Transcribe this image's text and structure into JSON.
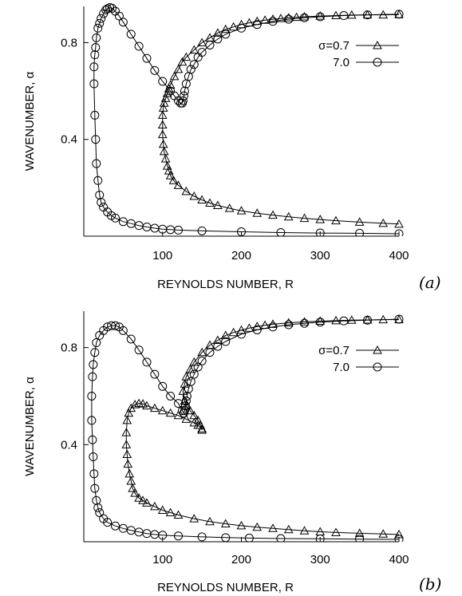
{
  "chart_data": [
    {
      "type": "line",
      "panel_label": "(a)",
      "xlabel": "REYNOLDS NUMBER, R",
      "ylabel": "WAVENUMBER, α",
      "xlim": [
        0,
        400
      ],
      "ylim": [
        0,
        0.95
      ],
      "xticks": [
        "100",
        "200",
        "300",
        "400"
      ],
      "yticks": [
        "0.4",
        "0.8"
      ],
      "legend_placement": "top-right",
      "series": [
        {
          "name": "σ=0.7",
          "marker": "triangle",
          "x": [
            400,
            380,
            350,
            320,
            300,
            280,
            260,
            240,
            220,
            200,
            185,
            170,
            160,
            150,
            140,
            130,
            120,
            114,
            110,
            108,
            106,
            104,
            102,
            101,
            100,
            100,
            100,
            101,
            102,
            104,
            106,
            108,
            110,
            115,
            120,
            125,
            130,
            140,
            150,
            160,
            170,
            180,
            190,
            200,
            210,
            220,
            230,
            240,
            250,
            260,
            270,
            280,
            300,
            320,
            340,
            360,
            380,
            400
          ],
          "y": [
            0.05,
            0.053,
            0.058,
            0.064,
            0.069,
            0.074,
            0.08,
            0.087,
            0.095,
            0.105,
            0.115,
            0.127,
            0.137,
            0.15,
            0.165,
            0.185,
            0.21,
            0.23,
            0.25,
            0.27,
            0.29,
            0.32,
            0.35,
            0.38,
            0.42,
            0.46,
            0.5,
            0.53,
            0.55,
            0.57,
            0.59,
            0.61,
            0.625,
            0.66,
            0.69,
            0.72,
            0.74,
            0.77,
            0.8,
            0.82,
            0.84,
            0.855,
            0.865,
            0.875,
            0.882,
            0.888,
            0.893,
            0.897,
            0.9,
            0.903,
            0.905,
            0.907,
            0.91,
            0.912,
            0.914,
            0.915,
            0.915,
            0.916
          ]
        },
        {
          "name": "7.0",
          "marker": "circle",
          "x": [
            400,
            350,
            300,
            250,
            200,
            150,
            120,
            110,
            100,
            90,
            80,
            70,
            60,
            50,
            40,
            35,
            30,
            25,
            22,
            20,
            18,
            16,
            15,
            14,
            13,
            13,
            14,
            15,
            16,
            18,
            20,
            22,
            25,
            28,
            30,
            33,
            36,
            40,
            45,
            50,
            60,
            70,
            80,
            90,
            100,
            110,
            115,
            120,
            123,
            125,
            126,
            127,
            128,
            130,
            133,
            136,
            140,
            145,
            150,
            160,
            170,
            180,
            200,
            220,
            240,
            260,
            280,
            300,
            330,
            360,
            400
          ],
          "y": [
            0.01,
            0.012,
            0.013,
            0.015,
            0.018,
            0.022,
            0.025,
            0.027,
            0.029,
            0.033,
            0.038,
            0.044,
            0.052,
            0.06,
            0.075,
            0.085,
            0.1,
            0.12,
            0.14,
            0.17,
            0.23,
            0.3,
            0.4,
            0.5,
            0.63,
            0.7,
            0.75,
            0.78,
            0.82,
            0.86,
            0.88,
            0.9,
            0.92,
            0.935,
            0.94,
            0.945,
            0.942,
            0.93,
            0.91,
            0.885,
            0.835,
            0.785,
            0.735,
            0.685,
            0.64,
            0.6,
            0.58,
            0.56,
            0.55,
            0.55,
            0.56,
            0.58,
            0.6,
            0.63,
            0.66,
            0.69,
            0.71,
            0.74,
            0.76,
            0.79,
            0.815,
            0.835,
            0.86,
            0.875,
            0.888,
            0.897,
            0.903,
            0.907,
            0.912,
            0.915,
            0.918
          ]
        }
      ]
    },
    {
      "type": "line",
      "panel_label": "(b)",
      "xlabel": "REYNOLDS NUMBER, R",
      "ylabel": "WAVENUMBER, α",
      "xlim": [
        0,
        400
      ],
      "ylim": [
        0,
        0.95
      ],
      "xticks": [
        "100",
        "200",
        "300",
        "400"
      ],
      "yticks": [
        "0.4",
        "0.8"
      ],
      "legend_placement": "top-right",
      "series": [
        {
          "name": "σ=0.7",
          "marker": "triangle",
          "x": [
            400,
            380,
            350,
            320,
            300,
            280,
            260,
            240,
            220,
            200,
            180,
            160,
            140,
            120,
            110,
            100,
            90,
            80,
            75,
            70,
            65,
            62,
            60,
            58,
            56,
            55,
            54,
            54,
            55,
            57,
            60,
            65,
            70,
            75,
            80,
            90,
            100,
            110,
            120,
            130,
            140,
            145,
            150,
            150,
            148,
            145,
            140,
            135,
            130,
            128,
            126,
            128,
            130,
            135,
            140,
            150,
            160,
            170,
            180,
            190,
            200,
            210,
            220,
            230,
            240,
            260,
            280,
            300,
            320,
            340,
            360,
            380,
            400
          ],
          "y": [
            0.03,
            0.032,
            0.035,
            0.038,
            0.041,
            0.045,
            0.05,
            0.055,
            0.06,
            0.066,
            0.074,
            0.083,
            0.095,
            0.11,
            0.12,
            0.13,
            0.145,
            0.16,
            0.17,
            0.18,
            0.2,
            0.22,
            0.25,
            0.28,
            0.32,
            0.36,
            0.4,
            0.45,
            0.5,
            0.53,
            0.55,
            0.565,
            0.57,
            0.568,
            0.56,
            0.55,
            0.54,
            0.53,
            0.52,
            0.505,
            0.49,
            0.48,
            0.465,
            0.46,
            0.48,
            0.5,
            0.52,
            0.54,
            0.56,
            0.58,
            0.62,
            0.65,
            0.68,
            0.71,
            0.74,
            0.78,
            0.81,
            0.83,
            0.85,
            0.862,
            0.872,
            0.88,
            0.887,
            0.892,
            0.896,
            0.902,
            0.906,
            0.909,
            0.911,
            0.913,
            0.914,
            0.915,
            0.915
          ]
        },
        {
          "name": "7.0",
          "marker": "circle",
          "x": [
            400,
            350,
            300,
            250,
            210,
            180,
            150,
            120,
            100,
            90,
            80,
            70,
            60,
            50,
            40,
            30,
            25,
            20,
            18,
            16,
            14,
            13,
            12,
            11,
            10,
            10,
            11,
            12,
            14,
            16,
            20,
            25,
            30,
            35,
            40,
            45,
            50,
            60,
            70,
            80,
            90,
            100,
            110,
            120,
            125,
            127,
            128,
            129,
            130,
            131,
            133,
            136,
            140,
            145,
            150,
            160,
            170,
            180,
            200,
            220,
            240,
            260,
            280,
            300,
            330,
            360,
            400
          ],
          "y": [
            0.01,
            0.011,
            0.012,
            0.013,
            0.015,
            0.017,
            0.02,
            0.024,
            0.027,
            0.03,
            0.034,
            0.04,
            0.047,
            0.055,
            0.065,
            0.08,
            0.095,
            0.12,
            0.14,
            0.17,
            0.22,
            0.28,
            0.35,
            0.42,
            0.5,
            0.6,
            0.68,
            0.73,
            0.78,
            0.82,
            0.85,
            0.87,
            0.885,
            0.89,
            0.89,
            0.885,
            0.87,
            0.835,
            0.79,
            0.74,
            0.69,
            0.64,
            0.6,
            0.57,
            0.54,
            0.53,
            0.54,
            0.56,
            0.58,
            0.6,
            0.63,
            0.66,
            0.69,
            0.72,
            0.745,
            0.78,
            0.805,
            0.825,
            0.855,
            0.873,
            0.885,
            0.894,
            0.9,
            0.905,
            0.91,
            0.913,
            0.917
          ]
        }
      ]
    }
  ]
}
